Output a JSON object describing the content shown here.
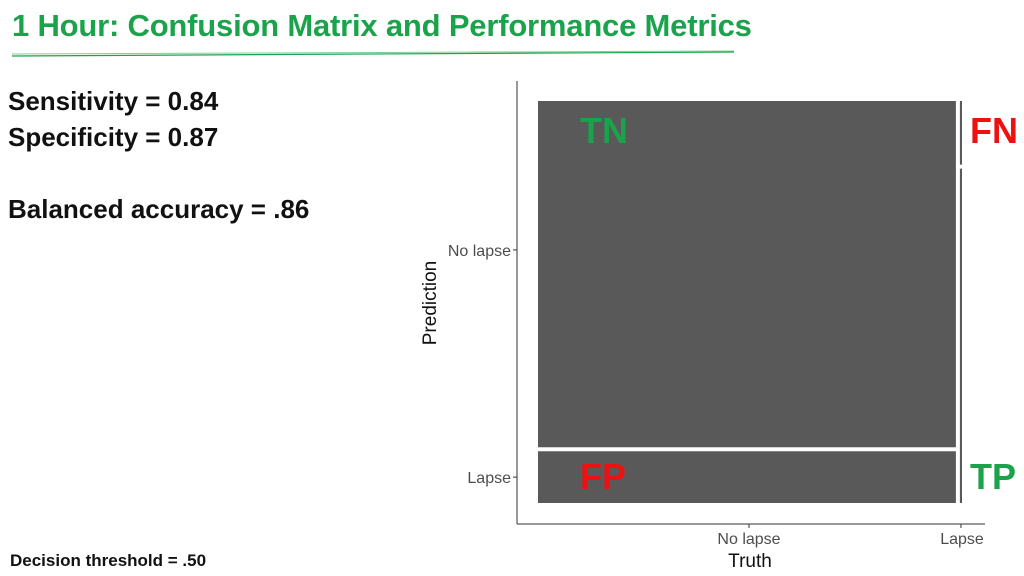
{
  "slide": {
    "title": "1 Hour: Confusion Matrix and Performance Metrics",
    "title_color": "#1aa34a",
    "metrics": {
      "sensitivity": "Sensitivity = 0.84",
      "specificity": "Specificity = 0.87",
      "balanced_accuracy": "Balanced accuracy = .86"
    },
    "threshold": "Decision threshold = .50"
  },
  "chart_data": {
    "type": "mosaic",
    "xlabel": "Truth",
    "ylabel": "Prediction",
    "x_categories": [
      "No lapse",
      "Lapse"
    ],
    "y_categories": [
      "No lapse",
      "Lapse"
    ],
    "column_proportions": [
      0.995,
      0.005
    ],
    "cells": [
      {
        "truth": "No lapse",
        "prediction": "No lapse",
        "share_of_column": 0.87,
        "label": "TN",
        "label_color": "#1aa34a"
      },
      {
        "truth": "No lapse",
        "prediction": "Lapse",
        "share_of_column": 0.13,
        "label": "FP",
        "label_color": "#ee1111"
      },
      {
        "truth": "Lapse",
        "prediction": "No lapse",
        "share_of_column": 0.16,
        "label": "FN",
        "label_color": "#ee1111"
      },
      {
        "truth": "Lapse",
        "prediction": "Lapse",
        "share_of_column": 0.84,
        "label": "TP",
        "label_color": "#1aa34a"
      }
    ],
    "fill_color": "#595959",
    "grid": false
  }
}
